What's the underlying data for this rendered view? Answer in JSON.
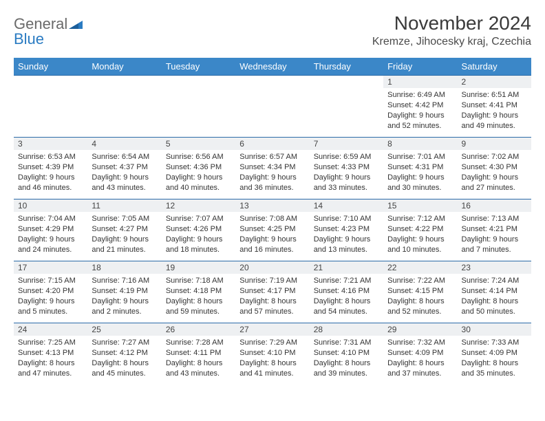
{
  "logo": {
    "word1": "General",
    "word2": "Blue"
  },
  "title": "November 2024",
  "location": "Kremze, Jihocesky kraj, Czechia",
  "colors": {
    "header_bg": "#3b87c8",
    "header_text": "#ffffff",
    "row_divider": "#2a6aa8",
    "daynum_bg": "#eef0f2",
    "body_text": "#333333",
    "logo_gray": "#6a6a6a",
    "logo_blue": "#2a7bc2"
  },
  "weekdays": [
    "Sunday",
    "Monday",
    "Tuesday",
    "Wednesday",
    "Thursday",
    "Friday",
    "Saturday"
  ],
  "weeks": [
    [
      null,
      null,
      null,
      null,
      null,
      {
        "n": "1",
        "sr": "6:49 AM",
        "ss": "4:42 PM",
        "dl": "9 hours and 52 minutes."
      },
      {
        "n": "2",
        "sr": "6:51 AM",
        "ss": "4:41 PM",
        "dl": "9 hours and 49 minutes."
      }
    ],
    [
      {
        "n": "3",
        "sr": "6:53 AM",
        "ss": "4:39 PM",
        "dl": "9 hours and 46 minutes."
      },
      {
        "n": "4",
        "sr": "6:54 AM",
        "ss": "4:37 PM",
        "dl": "9 hours and 43 minutes."
      },
      {
        "n": "5",
        "sr": "6:56 AM",
        "ss": "4:36 PM",
        "dl": "9 hours and 40 minutes."
      },
      {
        "n": "6",
        "sr": "6:57 AM",
        "ss": "4:34 PM",
        "dl": "9 hours and 36 minutes."
      },
      {
        "n": "7",
        "sr": "6:59 AM",
        "ss": "4:33 PM",
        "dl": "9 hours and 33 minutes."
      },
      {
        "n": "8",
        "sr": "7:01 AM",
        "ss": "4:31 PM",
        "dl": "9 hours and 30 minutes."
      },
      {
        "n": "9",
        "sr": "7:02 AM",
        "ss": "4:30 PM",
        "dl": "9 hours and 27 minutes."
      }
    ],
    [
      {
        "n": "10",
        "sr": "7:04 AM",
        "ss": "4:29 PM",
        "dl": "9 hours and 24 minutes."
      },
      {
        "n": "11",
        "sr": "7:05 AM",
        "ss": "4:27 PM",
        "dl": "9 hours and 21 minutes."
      },
      {
        "n": "12",
        "sr": "7:07 AM",
        "ss": "4:26 PM",
        "dl": "9 hours and 18 minutes."
      },
      {
        "n": "13",
        "sr": "7:08 AM",
        "ss": "4:25 PM",
        "dl": "9 hours and 16 minutes."
      },
      {
        "n": "14",
        "sr": "7:10 AM",
        "ss": "4:23 PM",
        "dl": "9 hours and 13 minutes."
      },
      {
        "n": "15",
        "sr": "7:12 AM",
        "ss": "4:22 PM",
        "dl": "9 hours and 10 minutes."
      },
      {
        "n": "16",
        "sr": "7:13 AM",
        "ss": "4:21 PM",
        "dl": "9 hours and 7 minutes."
      }
    ],
    [
      {
        "n": "17",
        "sr": "7:15 AM",
        "ss": "4:20 PM",
        "dl": "9 hours and 5 minutes."
      },
      {
        "n": "18",
        "sr": "7:16 AM",
        "ss": "4:19 PM",
        "dl": "9 hours and 2 minutes."
      },
      {
        "n": "19",
        "sr": "7:18 AM",
        "ss": "4:18 PM",
        "dl": "8 hours and 59 minutes."
      },
      {
        "n": "20",
        "sr": "7:19 AM",
        "ss": "4:17 PM",
        "dl": "8 hours and 57 minutes."
      },
      {
        "n": "21",
        "sr": "7:21 AM",
        "ss": "4:16 PM",
        "dl": "8 hours and 54 minutes."
      },
      {
        "n": "22",
        "sr": "7:22 AM",
        "ss": "4:15 PM",
        "dl": "8 hours and 52 minutes."
      },
      {
        "n": "23",
        "sr": "7:24 AM",
        "ss": "4:14 PM",
        "dl": "8 hours and 50 minutes."
      }
    ],
    [
      {
        "n": "24",
        "sr": "7:25 AM",
        "ss": "4:13 PM",
        "dl": "8 hours and 47 minutes."
      },
      {
        "n": "25",
        "sr": "7:27 AM",
        "ss": "4:12 PM",
        "dl": "8 hours and 45 minutes."
      },
      {
        "n": "26",
        "sr": "7:28 AM",
        "ss": "4:11 PM",
        "dl": "8 hours and 43 minutes."
      },
      {
        "n": "27",
        "sr": "7:29 AM",
        "ss": "4:10 PM",
        "dl": "8 hours and 41 minutes."
      },
      {
        "n": "28",
        "sr": "7:31 AM",
        "ss": "4:10 PM",
        "dl": "8 hours and 39 minutes."
      },
      {
        "n": "29",
        "sr": "7:32 AM",
        "ss": "4:09 PM",
        "dl": "8 hours and 37 minutes."
      },
      {
        "n": "30",
        "sr": "7:33 AM",
        "ss": "4:09 PM",
        "dl": "8 hours and 35 minutes."
      }
    ]
  ],
  "labels": {
    "sunrise": "Sunrise:",
    "sunset": "Sunset:",
    "daylight": "Daylight:"
  }
}
